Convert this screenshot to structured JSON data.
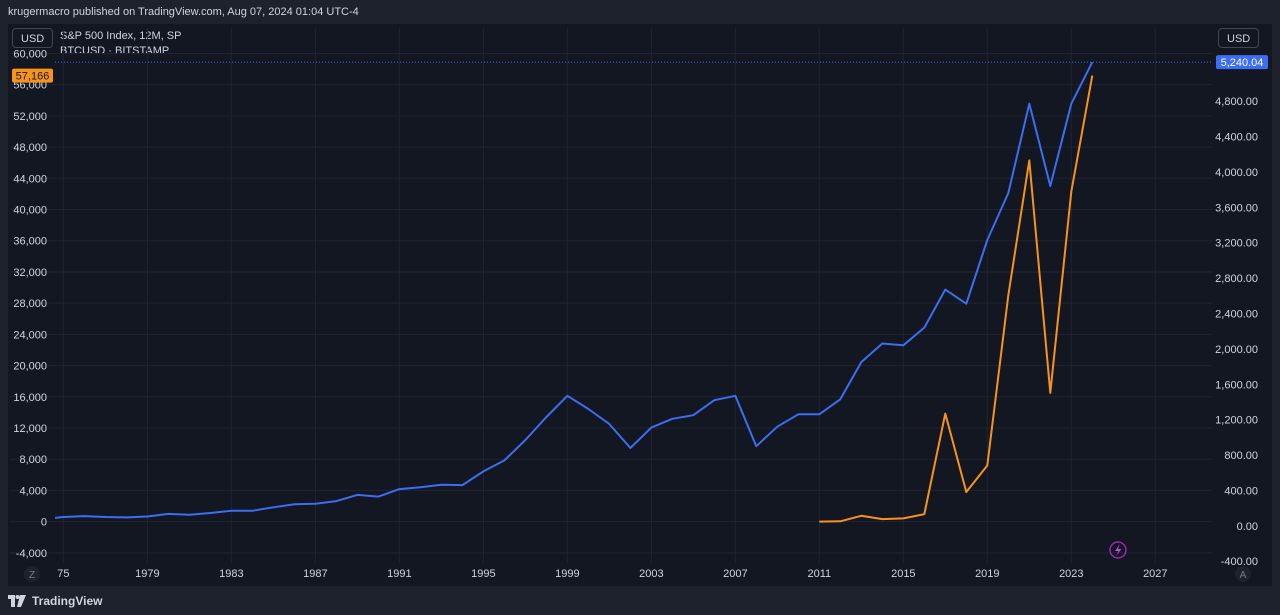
{
  "header": {
    "published_line": "krugermacro published on TradingView.com, Aug 07, 2024 01:04 UTC-4"
  },
  "toolbar": {
    "left_currency": "USD",
    "right_currency": "USD"
  },
  "legend": {
    "line1": "S&P 500 Index, 12M, SP",
    "line2": "BTCUSD · BITSTAMP"
  },
  "footer": {
    "brand": "TradingView",
    "z_button": "Z",
    "a_button": "A"
  },
  "colors": {
    "sp500": "#3d6df2",
    "btc": "#f7931a",
    "background": "#131722"
  },
  "chart_data": {
    "type": "line",
    "x_ticks": [
      "75",
      "1979",
      "1983",
      "1987",
      "1991",
      "1995",
      "1999",
      "2003",
      "2007",
      "2011",
      "2015",
      "2019",
      "2023",
      "2027"
    ],
    "x_tick_values": [
      1975,
      1979,
      1983,
      1987,
      1991,
      1995,
      1999,
      2003,
      2007,
      2011,
      2015,
      2019,
      2023,
      2027
    ],
    "xlim": [
      1974.6,
      2029.7
    ],
    "left_axis": {
      "ticks": [
        "60,000",
        "56,000",
        "52,000",
        "48,000",
        "44,000",
        "40,000",
        "36,000",
        "32,000",
        "28,000",
        "24,000",
        "20,000",
        "16,000",
        "12,000",
        "8,000",
        "4,000",
        "0",
        "-4,000"
      ],
      "tick_values": [
        60000,
        56000,
        52000,
        48000,
        44000,
        40000,
        36000,
        32000,
        28000,
        24000,
        20000,
        16000,
        12000,
        8000,
        4000,
        0,
        -4000
      ],
      "ylim": [
        -5300,
        60700
      ],
      "current_label": "57,166",
      "current_value": 57166
    },
    "right_axis": {
      "ticks": [
        "4,800.00",
        "4,400.00",
        "4,000.00",
        "3,600.00",
        "3,200.00",
        "2,800.00",
        "2,400.00",
        "2,000.00",
        "1,600.00",
        "1,200.00",
        "800.00",
        "400.00",
        "0.00",
        "-400.00"
      ],
      "tick_values": [
        4800,
        4400,
        4000,
        3600,
        3200,
        2800,
        2400,
        2000,
        1600,
        1200,
        800,
        400,
        0,
        -400
      ],
      "ylim": [
        -420,
        5400
      ],
      "current_label": "5,240.04",
      "current_value": 5240.04
    },
    "series": [
      {
        "name": "S&P 500 Index, 12M, SP",
        "axis": "right",
        "x": [
          1974.6,
          1975,
          1976,
          1977,
          1978,
          1979,
          1980,
          1981,
          1982,
          1983,
          1984,
          1985,
          1986,
          1987,
          1988,
          1989,
          1990,
          1991,
          1992,
          1993,
          1994,
          1995,
          1996,
          1997,
          1998,
          1999,
          2000,
          2001,
          2002,
          2003,
          2004,
          2005,
          2006,
          2007,
          2008,
          2009,
          2010,
          2011,
          2012,
          2013,
          2014,
          2015,
          2016,
          2017,
          2018,
          2019,
          2020,
          2021,
          2022,
          2023,
          2024
        ],
        "values": [
          90,
          100,
          110,
          100,
          95,
          105,
          135,
          125,
          145,
          170,
          170,
          210,
          245,
          250,
          280,
          350,
          330,
          415,
          435,
          465,
          460,
          615,
          740,
          970,
          1230,
          1470,
          1320,
          1150,
          880,
          1110,
          1210,
          1250,
          1420,
          1470,
          900,
          1120,
          1260,
          1260,
          1430,
          1850,
          2060,
          2040,
          2240,
          2670,
          2510,
          3230,
          3760,
          4770,
          3840,
          4770,
          5240
        ]
      },
      {
        "name": "BTCUSD · BITSTAMP",
        "axis": "left",
        "x": [
          2011,
          2012,
          2013,
          2014,
          2015,
          2016,
          2017,
          2018,
          2019,
          2020,
          2021,
          2022,
          2023,
          2024
        ],
        "values": [
          10,
          50,
          750,
          320,
          420,
          960,
          13850,
          3800,
          7200,
          29000,
          46300,
          16500,
          42300,
          57166
        ]
      }
    ],
    "grid": true
  }
}
